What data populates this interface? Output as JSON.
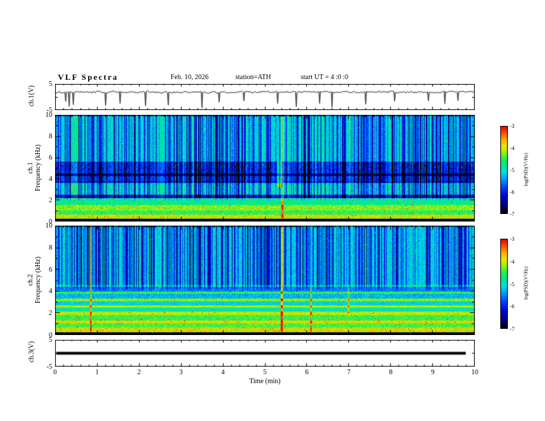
{
  "header": {
    "title": "VLF Spectra",
    "date": "Feb. 10, 2026",
    "station": "station=ATH",
    "start_ut": "start UT =  4 :0 :0"
  },
  "xaxis": {
    "label": "Time (min)",
    "min": 0,
    "max": 10,
    "major_ticks": [
      0,
      1,
      2,
      3,
      4,
      5,
      6,
      7,
      8,
      9,
      10
    ],
    "minor_per_major": 5
  },
  "colorbar": {
    "label": "log(PSD)(V²/Hz)",
    "ticks": [
      -3,
      -4,
      -5,
      -6,
      -7
    ],
    "min": -7,
    "max": -3,
    "stops": [
      {
        "v": -7.0,
        "c": "#000000"
      },
      {
        "v": -6.6,
        "c": "#000080"
      },
      {
        "v": -6.2,
        "c": "#0000e0"
      },
      {
        "v": -5.8,
        "c": "#0040ff"
      },
      {
        "v": -5.4,
        "c": "#00a0ff"
      },
      {
        "v": -5.1,
        "c": "#00e0e0"
      },
      {
        "v": -4.8,
        "c": "#00e890"
      },
      {
        "v": -4.5,
        "c": "#20f050"
      },
      {
        "v": -4.2,
        "c": "#a0f000"
      },
      {
        "v": -3.9,
        "c": "#e8e800"
      },
      {
        "v": -3.6,
        "c": "#ffa800"
      },
      {
        "v": -3.3,
        "c": "#ff4800"
      },
      {
        "v": -3.0,
        "c": "#e80000"
      }
    ]
  },
  "chart_data": [
    {
      "id": "ch1_waveform",
      "type": "line",
      "ylabel": "ch.1(V)",
      "ylim": [
        -5,
        5
      ],
      "ytick_labels": [
        "5",
        "-5"
      ],
      "x_range_min": [
        0,
        10
      ],
      "baseline": 1.8,
      "noise_amp": 0.45,
      "spike_times_min": [
        0.25,
        0.33,
        0.42,
        1.2,
        1.55,
        2.15,
        2.7,
        3.5,
        3.9,
        4.5,
        5.3,
        5.75,
        6.3,
        6.6,
        7.4,
        8.1,
        8.9,
        9.3,
        9.6
      ],
      "spike_depth": -4.2,
      "seed": 101
    },
    {
      "id": "ch1_spectrogram",
      "type": "heatmap",
      "ylabel_lines": [
        "ch.1",
        "Frequency (kHz)"
      ],
      "ylim_khz": [
        0,
        10
      ],
      "yticks": [
        0,
        2,
        4,
        6,
        8,
        10
      ],
      "x_range_min": [
        0,
        10
      ],
      "value_range": [
        -7,
        -3
      ],
      "background_level": -5.15,
      "bands": [
        {
          "f": [
            0,
            0.25
          ],
          "level": -6.9,
          "var": 0.15
        },
        {
          "f": [
            0.25,
            0.6
          ],
          "level": -4.0,
          "var": 0.45
        },
        {
          "f": [
            0.6,
            1.0
          ],
          "level": -4.55,
          "var": 0.35
        },
        {
          "f": [
            1.0,
            1.55
          ],
          "level": -4.25,
          "var": 0.4
        },
        {
          "f": [
            1.55,
            2.2
          ],
          "level": -4.75,
          "var": 0.3
        },
        {
          "f": [
            2.2,
            2.5
          ],
          "level": -6.1,
          "var": 0.25
        },
        {
          "f": [
            2.5,
            3.6
          ],
          "level": -5.05,
          "var": 0.3
        },
        {
          "f": [
            3.6,
            3.8
          ],
          "level": -6.0,
          "var": 0.2
        },
        {
          "f": [
            3.8,
            4.25
          ],
          "level": -5.8,
          "var": 0.3
        },
        {
          "f": [
            4.25,
            4.5
          ],
          "level": -6.5,
          "var": 0.2
        },
        {
          "f": [
            4.5,
            5.6
          ],
          "level": -5.85,
          "var": 0.35
        },
        {
          "f": [
            5.6,
            10.01
          ],
          "level": -5.15,
          "var": 0.25
        }
      ],
      "streaks": {
        "density": 0.5,
        "dark_amp": 1.3,
        "bright_density": 0.12,
        "bright_amp": 0.5,
        "fade_below_khz": 2.4
      },
      "speckle": {
        "low_band_khz": [
          0.25,
          2.2
        ],
        "low_prob": 0.006,
        "high_prob": 0.001,
        "boost": 1.6
      },
      "events": [
        {
          "t_min": 5.35,
          "width_min": 0.12,
          "f_khz": [
            3.2,
            5.6
          ],
          "delta": 0.9
        },
        {
          "t_min": 5.42,
          "width_min": 0.04,
          "f_khz": [
            0.3,
            10
          ],
          "delta": 1.2
        },
        {
          "t_min": 7.05,
          "width_min": 0.05,
          "f_khz": [
            2.4,
            10
          ],
          "delta": 0.7
        }
      ],
      "seed": 7
    },
    {
      "id": "ch2_spectrogram",
      "type": "heatmap",
      "ylabel_lines": [
        "ch.2",
        "Frequency (kHz)"
      ],
      "ylim_khz": [
        0,
        10
      ],
      "yticks": [
        0,
        2,
        4,
        6,
        8,
        10
      ],
      "x_range_min": [
        0,
        10
      ],
      "value_range": [
        -7,
        -3
      ],
      "background_level": -5.2,
      "bands": [
        {
          "f": [
            0,
            0.25
          ],
          "level": -6.9,
          "var": 0.15
        },
        {
          "f": [
            0.25,
            0.65
          ],
          "level": -3.95,
          "var": 0.45
        },
        {
          "f": [
            0.65,
            1.05
          ],
          "level": -4.45,
          "var": 0.35
        },
        {
          "f": [
            1.05,
            1.3
          ],
          "level": -3.9,
          "var": 0.35
        },
        {
          "f": [
            1.3,
            1.8
          ],
          "level": -4.5,
          "var": 0.3
        },
        {
          "f": [
            1.8,
            2.1
          ],
          "level": -4.05,
          "var": 0.35
        },
        {
          "f": [
            2.1,
            2.5
          ],
          "level": -4.9,
          "var": 0.3
        },
        {
          "f": [
            2.5,
            2.7
          ],
          "level": -4.1,
          "var": 0.3
        },
        {
          "f": [
            2.7,
            3.1
          ],
          "level": -5.1,
          "var": 0.3
        },
        {
          "f": [
            3.1,
            3.3
          ],
          "level": -4.25,
          "var": 0.3
        },
        {
          "f": [
            3.3,
            3.75
          ],
          "level": -5.3,
          "var": 0.3
        },
        {
          "f": [
            3.75,
            3.95
          ],
          "level": -4.5,
          "var": 0.3
        },
        {
          "f": [
            3.95,
            4.4
          ],
          "level": -5.5,
          "var": 0.3
        },
        {
          "f": [
            4.4,
            4.6
          ],
          "level": -4.8,
          "var": 0.3
        },
        {
          "f": [
            4.6,
            10.01
          ],
          "level": -5.2,
          "var": 0.25
        }
      ],
      "streaks": {
        "density": 0.5,
        "dark_amp": 1.25,
        "bright_density": 0.12,
        "bright_amp": 0.5,
        "fade_below_khz": 4.6
      },
      "speckle": {
        "low_band_khz": [
          0.25,
          2.1
        ],
        "low_prob": 0.007,
        "high_prob": 0.002,
        "boost": 1.6
      },
      "events": [
        {
          "t_min": 0.85,
          "width_min": 0.04,
          "f_khz": [
            0.3,
            10
          ],
          "delta": 1.1
        },
        {
          "t_min": 5.4,
          "width_min": 0.05,
          "f_khz": [
            0.3,
            10
          ],
          "delta": 1.3
        },
        {
          "t_min": 6.1,
          "width_min": 0.04,
          "f_khz": [
            0.3,
            10
          ],
          "delta": 1.0
        },
        {
          "t_min": 7.0,
          "width_min": 0.05,
          "f_khz": [
            2.0,
            10
          ],
          "delta": 0.7
        }
      ],
      "seed": 8
    },
    {
      "id": "ch3_waveform",
      "type": "line",
      "ylabel": "ch.3(V)",
      "ylim": [
        -5,
        5
      ],
      "ytick_labels": [
        "5",
        "-5"
      ],
      "x_range_min": [
        0,
        10
      ],
      "constant_value": 0,
      "x_data_end_min": 9.8,
      "line_width": 4
    }
  ]
}
